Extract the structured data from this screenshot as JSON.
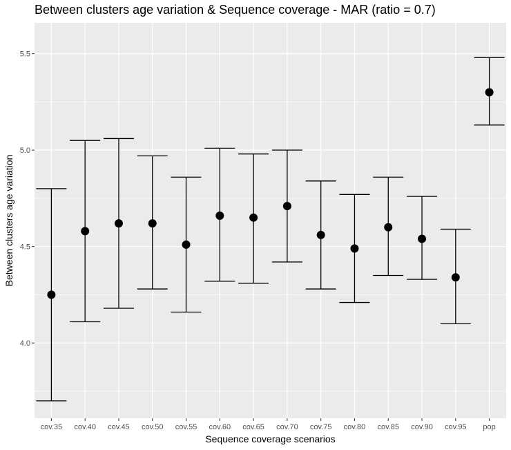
{
  "chart_data": {
    "type": "errorbar",
    "title": "Between clusters age variation & Sequence coverage - MAR (ratio = 0.7)",
    "xlabel": "Sequence coverage scenarios",
    "ylabel": "Between clusters age variation",
    "categories": [
      "cov.35",
      "cov.40",
      "cov.45",
      "cov.50",
      "cov.55",
      "cov.60",
      "cov.65",
      "cov.70",
      "cov.75",
      "cov.80",
      "cov.85",
      "cov.90",
      "cov.95",
      "pop"
    ],
    "values": [
      4.25,
      4.58,
      4.62,
      4.62,
      4.51,
      4.66,
      4.65,
      4.71,
      4.56,
      4.49,
      4.6,
      4.54,
      4.34,
      5.3
    ],
    "upper": [
      4.8,
      5.05,
      5.06,
      4.97,
      4.86,
      5.01,
      4.98,
      5.0,
      4.84,
      4.77,
      4.86,
      4.76,
      4.59,
      5.48
    ],
    "lower": [
      3.7,
      4.11,
      4.18,
      4.28,
      4.16,
      4.32,
      4.31,
      4.42,
      4.28,
      4.21,
      4.35,
      4.33,
      4.1,
      5.13
    ],
    "ylim": [
      3.61,
      5.66
    ],
    "yticks": [
      4.0,
      4.5,
      5.0,
      5.5
    ],
    "ytick_labels": [
      "4.0",
      "4.5",
      "5.0",
      "5.5"
    ],
    "grid": true,
    "colors": {
      "panel": "#ebebeb",
      "grid": "#ffffff",
      "point": "#000000",
      "errorbar": "#000000"
    }
  }
}
